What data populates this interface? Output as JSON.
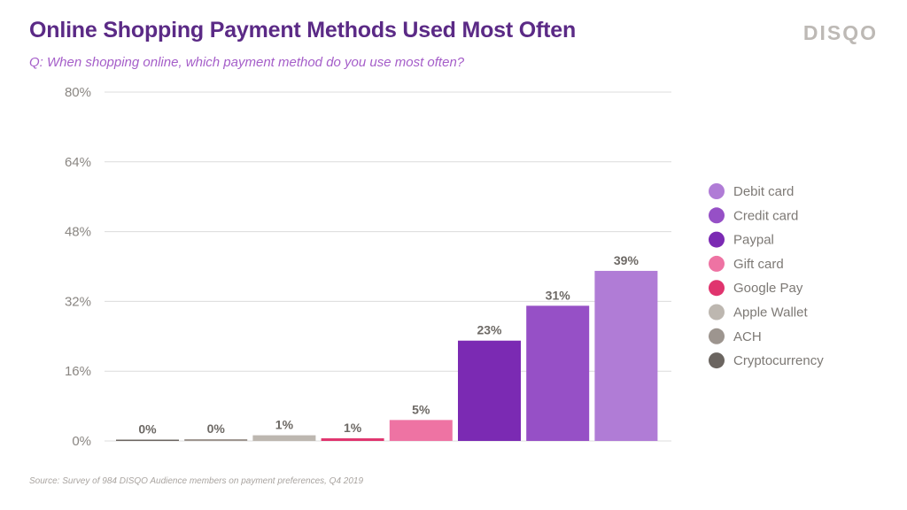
{
  "header": {
    "title": "Online Shopping Payment Methods Used Most Often",
    "subtitle": "Q: When shopping online, which payment method do you use most often?",
    "logo_text": "DISQO"
  },
  "footer": {
    "source": "Source: Survey of 984 DISQO Audience members on payment preferences, Q4 2019"
  },
  "colors": {
    "title": "#5b2a86",
    "subtitle": "#a55ec9",
    "logo": "#bdb9b5",
    "gridline": "#dcdcdc"
  },
  "chart_data": {
    "type": "bar",
    "title": "Online Shopping Payment Methods Used Most Often",
    "xlabel": "",
    "ylabel": "",
    "ylim": [
      0,
      80
    ],
    "y_ticks": [
      0,
      16,
      32,
      48,
      64,
      80
    ],
    "y_tick_labels": [
      "0%",
      "16%",
      "32%",
      "48%",
      "64%",
      "80%"
    ],
    "grid": true,
    "legend_position": "right",
    "categories": [
      "Cryptocurrency",
      "ACH",
      "Apple Wallet",
      "Google Pay",
      "Gift card",
      "Paypal",
      "Credit card",
      "Debit card"
    ],
    "values": [
      0.3,
      0.4,
      1.3,
      0.6,
      4.8,
      23,
      31,
      39
    ],
    "data_labels": [
      "0%",
      "0%",
      "1%",
      "1%",
      "5%",
      "23%",
      "31%",
      "39%"
    ],
    "colors": [
      "#6b6560",
      "#9d958f",
      "#bdb7b0",
      "#e0346e",
      "#ee73a3",
      "#7b2ab3",
      "#9650c6",
      "#b07cd6"
    ],
    "legend": [
      {
        "label": "Debit card",
        "color": "#b07cd6"
      },
      {
        "label": "Credit card",
        "color": "#9650c6"
      },
      {
        "label": "Paypal",
        "color": "#7b2ab3"
      },
      {
        "label": "Gift card",
        "color": "#ee73a3"
      },
      {
        "label": "Google Pay",
        "color": "#e0346e"
      },
      {
        "label": "Apple Wallet",
        "color": "#bdb7b0"
      },
      {
        "label": "ACH",
        "color": "#9d958f"
      },
      {
        "label": "Cryptocurrency",
        "color": "#6b6560"
      }
    ]
  }
}
